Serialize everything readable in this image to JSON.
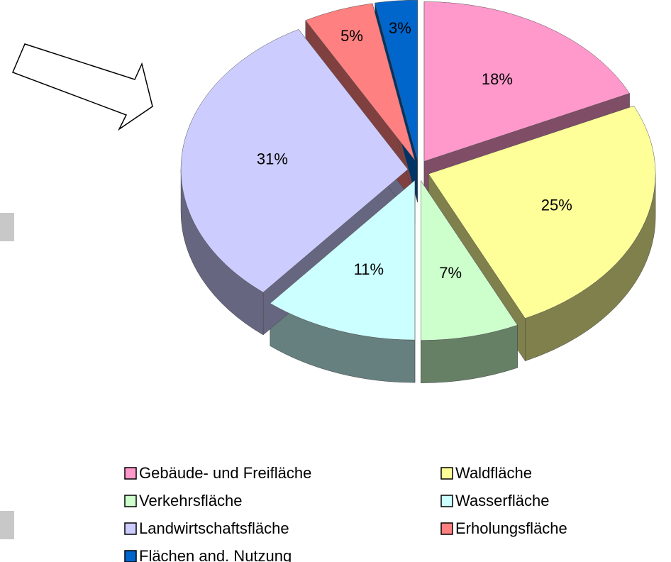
{
  "chart_data": {
    "type": "pie3d",
    "categories": [
      "Gebäude- und Freifläche",
      "Waldfläche",
      "Verkehrsfläche",
      "Wasserfläche",
      "Landwirtschaftsfläche",
      "Erholungsfläche",
      "Flächen and. Nutzung"
    ],
    "values": [
      18,
      25,
      7,
      11,
      31,
      5,
      3
    ],
    "value_labels": [
      "18%",
      "25%",
      "7%",
      "11%",
      "31%",
      "5%",
      "3%"
    ],
    "colors": [
      "#ff99cc",
      "#ffff99",
      "#ccffcc",
      "#ccffff",
      "#ccccff",
      "#ff8080",
      "#0066cc"
    ],
    "legend": "bottom"
  }
}
